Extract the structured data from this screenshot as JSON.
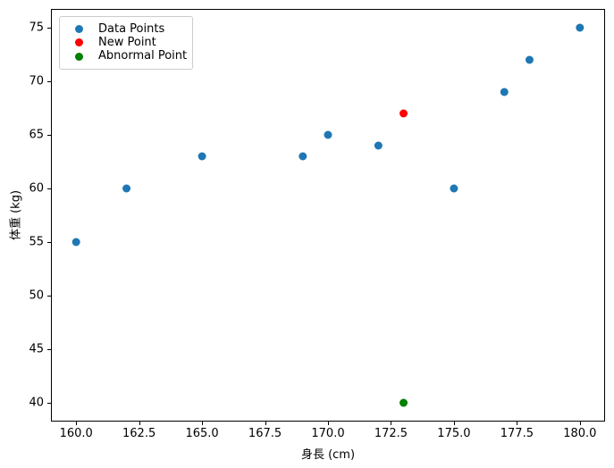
{
  "chart_data": {
    "type": "scatter",
    "title": "",
    "xlabel": "身長 (cm)",
    "ylabel": "体重 (kg)",
    "xlim": [
      159,
      181
    ],
    "ylim": [
      38.25,
      76.75
    ],
    "grid": false,
    "legend_position": "upper-left",
    "xticks": {
      "values": [
        160.0,
        162.5,
        165.0,
        167.5,
        170.0,
        172.5,
        175.0,
        177.5,
        180.0
      ],
      "labels": [
        "160.0",
        "162.5",
        "165.0",
        "167.5",
        "170.0",
        "172.5",
        "175.0",
        "177.5",
        "180.0"
      ]
    },
    "yticks": {
      "values": [
        40,
        45,
        50,
        55,
        60,
        65,
        70,
        75
      ],
      "labels": [
        "40",
        "45",
        "50",
        "55",
        "60",
        "65",
        "70",
        "75"
      ]
    },
    "series": [
      {
        "name": "Data Points",
        "color": "#1f77b4",
        "points": [
          [
            160,
            55
          ],
          [
            162,
            60
          ],
          [
            165,
            63
          ],
          [
            169,
            63
          ],
          [
            170,
            65
          ],
          [
            172,
            64
          ],
          [
            175,
            60
          ],
          [
            177,
            69
          ],
          [
            178,
            72
          ],
          [
            180,
            75
          ]
        ]
      },
      {
        "name": "New Point",
        "color": "#ff0000",
        "points": [
          [
            173,
            67
          ]
        ]
      },
      {
        "name": "Abnormal Point",
        "color": "#008000",
        "points": [
          [
            173,
            40
          ]
        ]
      }
    ]
  }
}
